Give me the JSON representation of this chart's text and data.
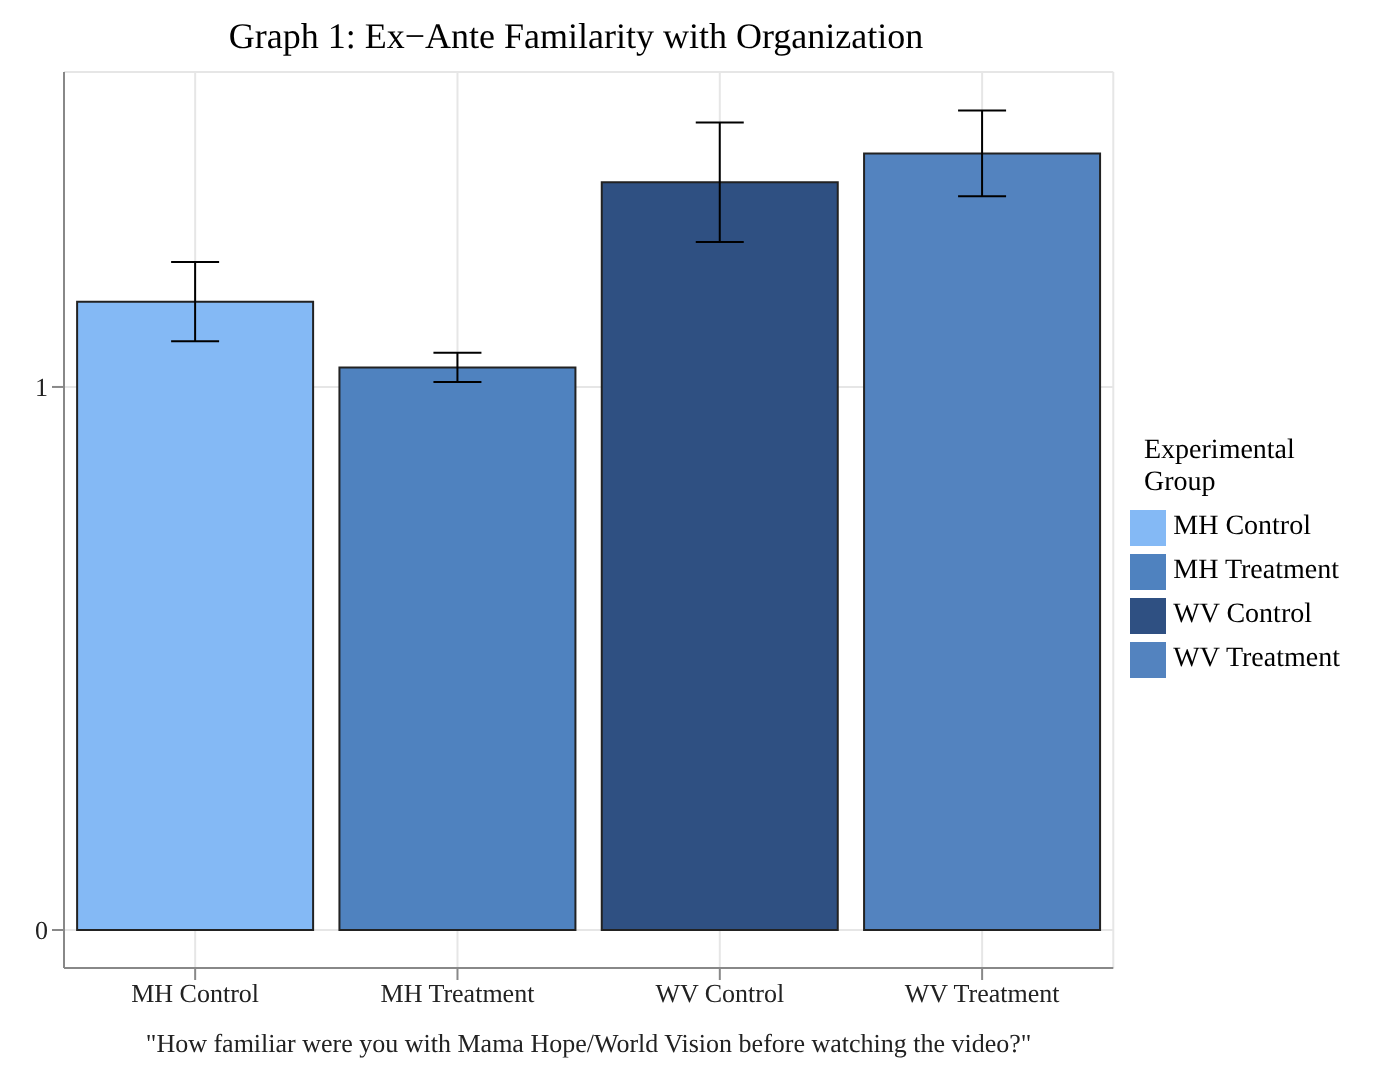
{
  "chart_data": {
    "type": "bar",
    "title": "Graph 1: Ex−Ante Familarity with Organization",
    "xlabel": "\"How familiar were you with Mama Hope/World Vision before watching the video?\"",
    "legend_title": "Experimental Group",
    "categories": [
      "MH Control",
      "MH Treatment",
      "WV Control",
      "WV Treatment"
    ],
    "series": [
      {
        "name": "MH Control",
        "color": "#84b9f5",
        "values": [
          1.157,
          null,
          null,
          null
        ],
        "errors": [
          0.073,
          null,
          null,
          null
        ]
      },
      {
        "name": "MH Treatment",
        "color": "#4f82bf",
        "values": [
          null,
          1.036,
          null,
          null
        ],
        "errors": [
          null,
          0.027,
          null,
          null
        ]
      },
      {
        "name": "WV Control",
        "color": "#2f5082",
        "values": [
          null,
          null,
          1.377,
          null
        ],
        "errors": [
          null,
          null,
          0.11,
          null
        ]
      },
      {
        "name": "WV Treatment",
        "color": "#5383bf",
        "values": [
          null,
          null,
          null,
          1.43
        ],
        "errors": [
          null,
          null,
          null,
          0.079
        ]
      }
    ],
    "ylim": [
      -0.07,
      1.58
    ],
    "yticks": [
      0,
      1
    ],
    "grid": true,
    "legend": "right"
  }
}
